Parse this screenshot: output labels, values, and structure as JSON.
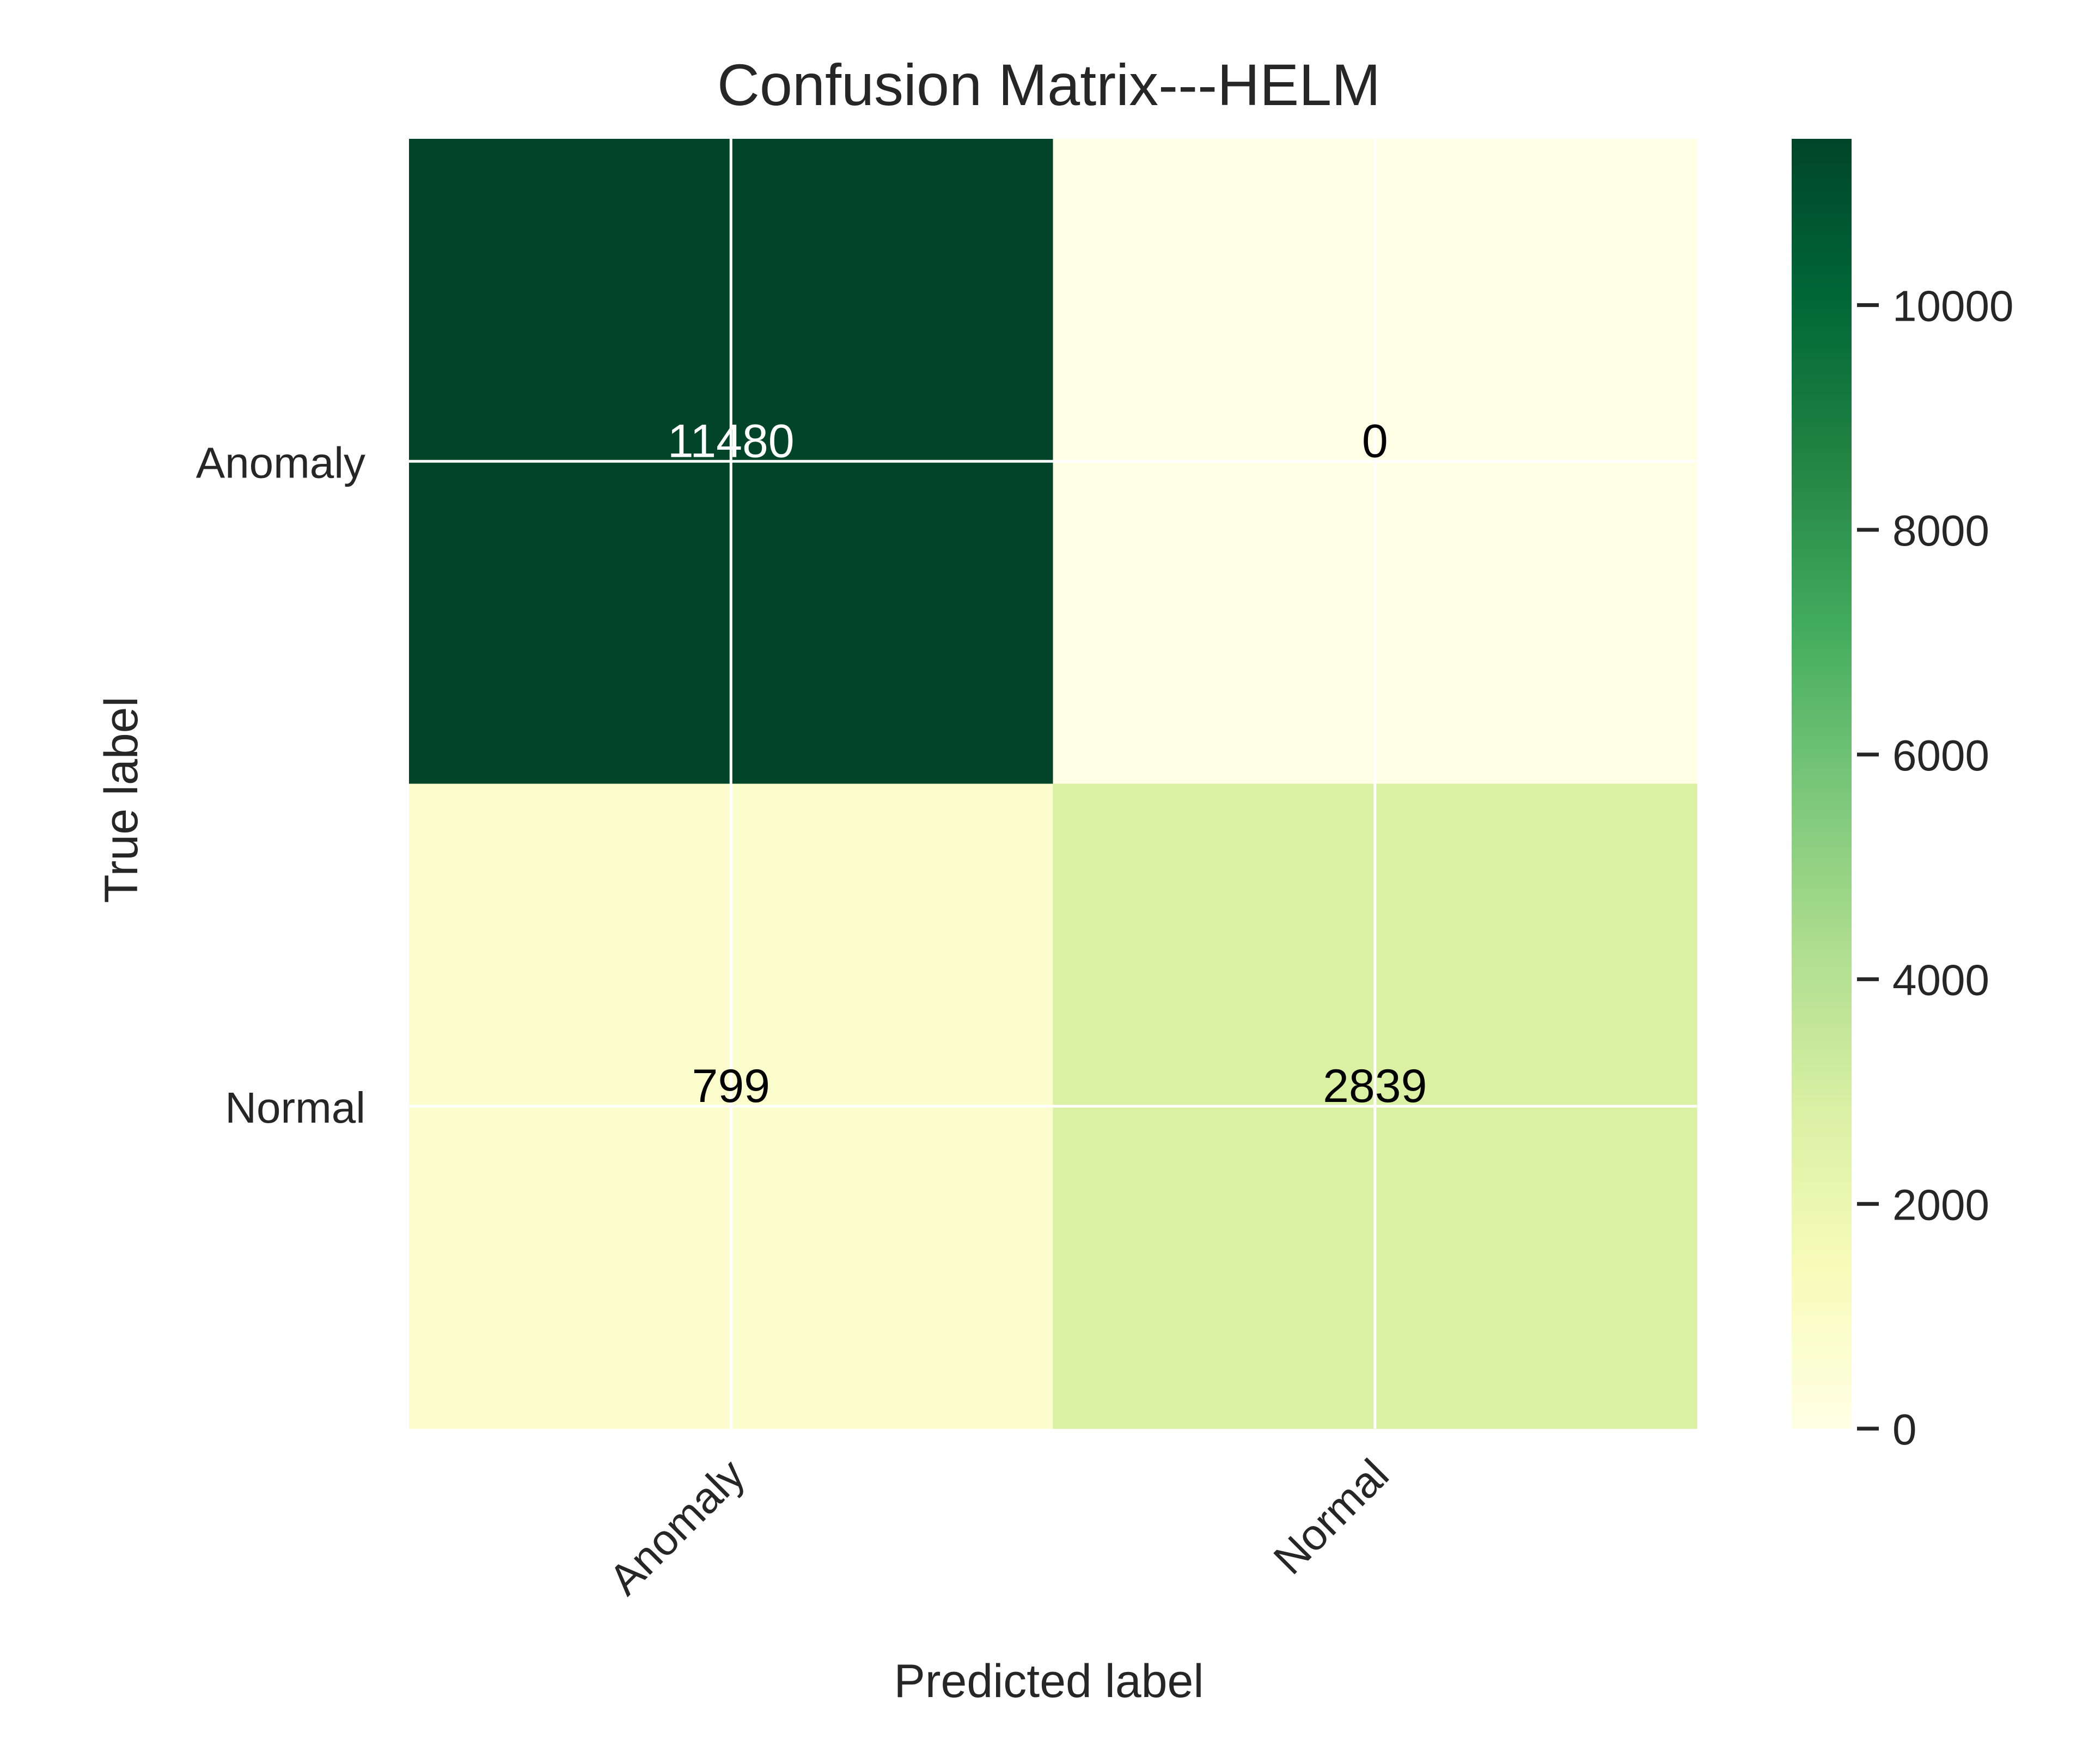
{
  "chart_data": {
    "type": "heatmap",
    "title": "Confusion Matrix---HELM",
    "xlabel": "Predicted label",
    "ylabel": "True label",
    "x_categories": [
      "Anomaly",
      "Normal"
    ],
    "y_categories": [
      "Anomaly",
      "Normal"
    ],
    "values": [
      [
        11480,
        0
      ],
      [
        799,
        2839
      ]
    ],
    "colormap": "YlGn",
    "colorbar": {
      "min": 0,
      "max": 11480,
      "ticks": [
        0,
        2000,
        4000,
        6000,
        8000,
        10000
      ]
    },
    "grid": true,
    "colors": {
      "text_dark": "#000000",
      "text_light": "#ffffff",
      "axis_text": "#262626",
      "grid_line": "#ffffff"
    }
  }
}
